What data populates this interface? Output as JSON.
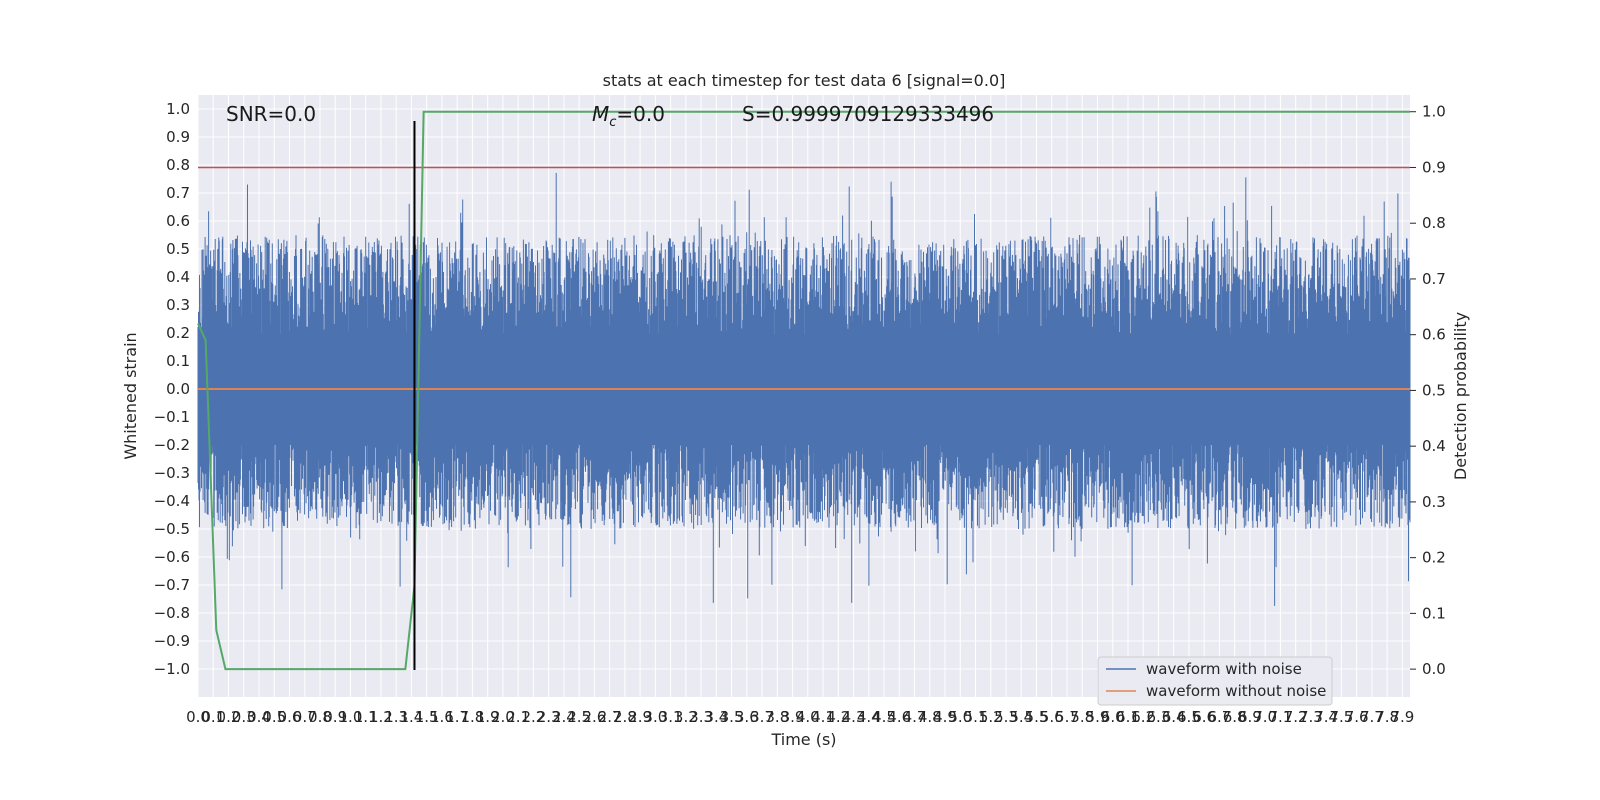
{
  "chart_data": {
    "type": "line",
    "title": "stats at each timestep for test data 6 [signal=0.0]",
    "xlabel": "Time (s)",
    "ylabel": "Whitened strain",
    "y2label": "Detection probability",
    "xlim": [
      0.0,
      7.95
    ],
    "ylim": [
      -1.1,
      1.05
    ],
    "y2lim": [
      -0.05,
      1.03
    ],
    "x_ticks": [
      0.0,
      0.1,
      0.2,
      0.3,
      0.4,
      0.5,
      0.6,
      0.7,
      0.8,
      0.9,
      1.0,
      1.1,
      1.2,
      1.3,
      1.4,
      1.5,
      1.6,
      1.7,
      1.8,
      1.9,
      2.0,
      2.1,
      2.2,
      2.3,
      2.4,
      2.5,
      2.6,
      2.7,
      2.8,
      2.9,
      3.0,
      3.1,
      3.2,
      3.3,
      3.4,
      3.5,
      3.6,
      3.7,
      3.8,
      3.9,
      4.0,
      4.1,
      4.2,
      4.3,
      4.4,
      4.5,
      4.6,
      4.7,
      4.8,
      4.9,
      5.0,
      5.1,
      5.2,
      5.3,
      5.4,
      5.5,
      5.6,
      5.7,
      5.8,
      5.9,
      6.0,
      6.1,
      6.2,
      6.3,
      6.4,
      6.5,
      6.6,
      6.7,
      6.8,
      6.9,
      7.0,
      7.1,
      7.2,
      7.3,
      7.4,
      7.5,
      7.6,
      7.7,
      7.8,
      7.9
    ],
    "y_ticks": [
      -1.0,
      -0.9,
      -0.8,
      -0.7,
      -0.6,
      -0.5,
      -0.4,
      -0.3,
      -0.2,
      -0.1,
      0.0,
      0.1,
      0.2,
      0.3,
      0.4,
      0.5,
      0.6,
      0.7,
      0.8,
      0.9,
      1.0
    ],
    "y2_ticks": [
      0.0,
      0.1,
      0.2,
      0.3,
      0.4,
      0.5,
      0.6,
      0.7,
      0.8,
      0.9,
      1.0
    ],
    "grid": true,
    "legend": "lower-right",
    "series": [
      {
        "name": "waveform with noise",
        "color": "#4c72b0",
        "kind": "noise",
        "envelope_upper": 0.55,
        "envelope_lower": -0.5
      },
      {
        "name": "waveform without noise",
        "color": "#dd8452",
        "x": [
          0.0,
          7.95
        ],
        "y": [
          0.0,
          0.0
        ]
      },
      {
        "color": "#55a868",
        "axis": "y2",
        "x": [
          0.0,
          0.05,
          0.12,
          0.18,
          1.36,
          1.42,
          1.48,
          7.95
        ],
        "y": [
          0.62,
          0.59,
          0.07,
          0.0,
          0.0,
          0.15,
          1.0,
          1.0
        ]
      }
    ],
    "threshold_line": {
      "axis": "y2",
      "value": 0.9,
      "color": "#c44e52"
    },
    "vertical_line": {
      "x": 1.42,
      "color": "#000000"
    },
    "annotations": [
      "SNR=0.0",
      "M",
      "c",
      "=0.0",
      "S=0.9999709129333496"
    ]
  }
}
